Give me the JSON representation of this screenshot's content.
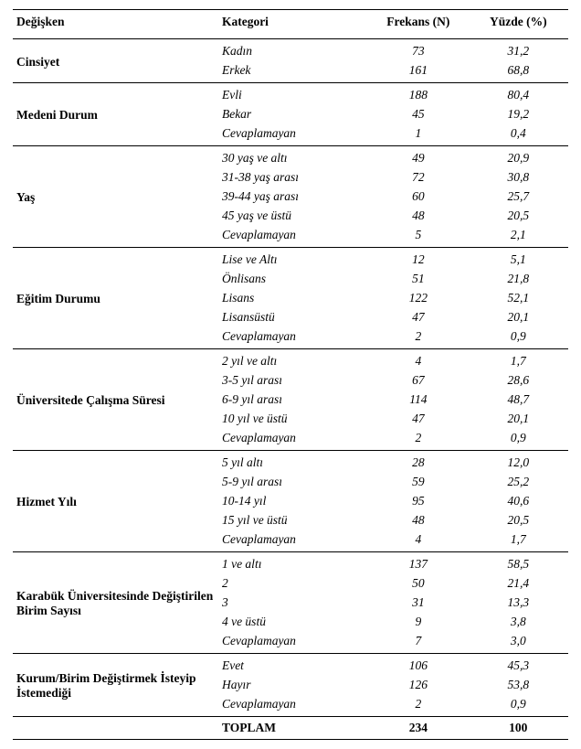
{
  "headers": {
    "variable": "Değişken",
    "category": "Kategori",
    "freq": "Frekans (N)",
    "pct": "Yüzde (%)"
  },
  "groups": [
    {
      "name": "Cinsiyet",
      "rows": [
        {
          "cat": "Kadın",
          "n": "73",
          "p": "31,2"
        },
        {
          "cat": "Erkek",
          "n": "161",
          "p": "68,8"
        }
      ]
    },
    {
      "name": "Medeni Durum",
      "rows": [
        {
          "cat": "Evli",
          "n": "188",
          "p": "80,4"
        },
        {
          "cat": "Bekar",
          "n": "45",
          "p": "19,2"
        },
        {
          "cat": "Cevaplamayan",
          "n": "1",
          "p": "0,4"
        }
      ]
    },
    {
      "name": "Yaş",
      "rows": [
        {
          "cat": "30 yaş ve altı",
          "n": "49",
          "p": "20,9"
        },
        {
          "cat": "31-38 yaş arası",
          "n": "72",
          "p": "30,8"
        },
        {
          "cat": "39-44 yaş arası",
          "n": "60",
          "p": "25,7"
        },
        {
          "cat": "45 yaş ve üstü",
          "n": "48",
          "p": "20,5"
        },
        {
          "cat": "Cevaplamayan",
          "n": "5",
          "p": "2,1"
        }
      ]
    },
    {
      "name": "Eğitim Durumu",
      "rows": [
        {
          "cat": "Lise ve Altı",
          "n": "12",
          "p": "5,1"
        },
        {
          "cat": "Önlisans",
          "n": "51",
          "p": "21,8"
        },
        {
          "cat": "Lisans",
          "n": "122",
          "p": "52,1"
        },
        {
          "cat": "Lisansüstü",
          "n": "47",
          "p": "20,1"
        },
        {
          "cat": "Cevaplamayan",
          "n": "2",
          "p": "0,9"
        }
      ]
    },
    {
      "name": "Üniversitede Çalışma Süresi",
      "rows": [
        {
          "cat": "2 yıl ve altı",
          "n": "4",
          "p": "1,7"
        },
        {
          "cat": "3-5 yıl arası",
          "n": "67",
          "p": "28,6"
        },
        {
          "cat": "6-9 yıl arası",
          "n": "114",
          "p": "48,7"
        },
        {
          "cat": "10 yıl ve üstü",
          "n": "47",
          "p": "20,1"
        },
        {
          "cat": "Cevaplamayan",
          "n": "2",
          "p": "0,9"
        }
      ]
    },
    {
      "name": "Hizmet Yılı",
      "rows": [
        {
          "cat": "5 yıl altı",
          "n": "28",
          "p": "12,0"
        },
        {
          "cat": "5-9 yıl arası",
          "n": "59",
          "p": "25,2"
        },
        {
          "cat": "10-14 yıl",
          "n": "95",
          "p": "40,6"
        },
        {
          "cat": "15 yıl ve üstü",
          "n": "48",
          "p": "20,5"
        },
        {
          "cat": "Cevaplamayan",
          "n": "4",
          "p": "1,7"
        }
      ]
    },
    {
      "name": "Karabük Üniversitesinde Değiştirilen Birim Sayısı",
      "rows": [
        {
          "cat": "1 ve altı",
          "n": "137",
          "p": "58,5"
        },
        {
          "cat": "2",
          "n": "50",
          "p": "21,4"
        },
        {
          "cat": "3",
          "n": "31",
          "p": "13,3"
        },
        {
          "cat": "4 ve üstü",
          "n": "9",
          "p": "3,8"
        },
        {
          "cat": "Cevaplamayan",
          "n": "7",
          "p": "3,0"
        }
      ]
    },
    {
      "name": "Kurum/Birim Değiştirmek İsteyip İstemediği",
      "rows": [
        {
          "cat": "Evet",
          "n": "106",
          "p": "45,3"
        },
        {
          "cat": "Hayır",
          "n": "126",
          "p": "53,8"
        },
        {
          "cat": "Cevaplamayan",
          "n": "2",
          "p": "0,9"
        }
      ]
    }
  ],
  "total": {
    "label": "TOPLAM",
    "n": "234",
    "p": "100"
  }
}
